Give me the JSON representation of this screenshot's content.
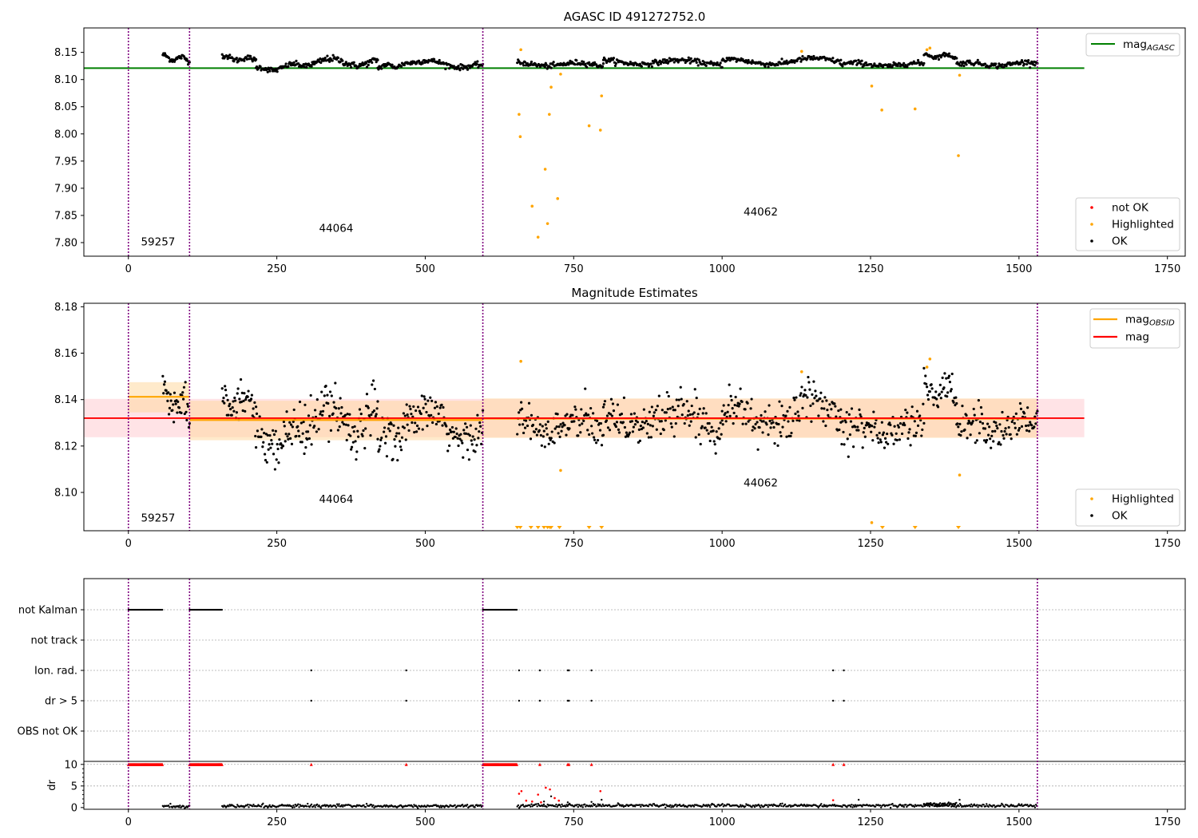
{
  "chart_data": [
    {
      "type": "scatter",
      "title": "AGASC ID 491272752.0",
      "xlim": [
        -75,
        1780
      ],
      "ylim": [
        7.775,
        8.195
      ],
      "xticks": [
        0,
        250,
        500,
        750,
        1000,
        1250,
        1500,
        1750
      ],
      "yticks": [
        7.8,
        7.85,
        7.9,
        7.95,
        8.0,
        8.05,
        8.1,
        8.15
      ],
      "grid": false,
      "obsid_boundaries": [
        0,
        103,
        597,
        1531
      ],
      "obsid_labels": [
        {
          "text": "59257",
          "x": 50,
          "y": 7.795
        },
        {
          "text": "44064",
          "x": 350,
          "y": 7.82
        },
        {
          "text": "44062",
          "x": 1065,
          "y": 7.85
        }
      ],
      "lines": [
        {
          "name": "mag",
          "subscript": "AGASC",
          "color": "#008000",
          "y": 8.121,
          "x0": -75,
          "x1": 1610
        }
      ],
      "legend_lines_position": "upper right",
      "legend_points_position": "lower right",
      "legend_points": [
        {
          "name": "not OK",
          "color": "#ff0000"
        },
        {
          "name": "Highlighted",
          "color": "#ffa500"
        },
        {
          "name": "OK",
          "color": "#000000"
        }
      ],
      "ok_segments": [
        {
          "x0": 58,
          "x1": 103,
          "y0": 8.142,
          "y1": 8.136,
          "amp": 0.004,
          "noise": 0.004,
          "n": 40
        },
        {
          "x0": 158,
          "x1": 215,
          "y0": 8.141,
          "y1": 8.136,
          "amp": 0.003,
          "noise": 0.004,
          "n": 50
        },
        {
          "x0": 215,
          "x1": 300,
          "y0": 8.118,
          "y1": 8.127,
          "amp": 0.004,
          "noise": 0.004,
          "n": 70
        },
        {
          "x0": 300,
          "x1": 420,
          "y0": 8.133,
          "y1": 8.131,
          "amp": 0.006,
          "noise": 0.005,
          "n": 100
        },
        {
          "x0": 420,
          "x1": 470,
          "y0": 8.123,
          "y1": 8.128,
          "amp": 0.003,
          "noise": 0.004,
          "n": 40
        },
        {
          "x0": 470,
          "x1": 597,
          "y0": 8.134,
          "y1": 8.123,
          "amp": 0.004,
          "noise": 0.004,
          "n": 100
        },
        {
          "x0": 655,
          "x1": 800,
          "y0": 8.128,
          "y1": 8.128,
          "amp": 0.003,
          "noise": 0.004,
          "n": 110
        },
        {
          "x0": 800,
          "x1": 1000,
          "y0": 8.133,
          "y1": 8.131,
          "amp": 0.004,
          "noise": 0.004,
          "n": 150
        },
        {
          "x0": 1000,
          "x1": 1200,
          "y0": 8.132,
          "y1": 8.135,
          "amp": 0.005,
          "noise": 0.004,
          "n": 150
        },
        {
          "x0": 1200,
          "x1": 1340,
          "y0": 8.128,
          "y1": 8.127,
          "amp": 0.003,
          "noise": 0.004,
          "n": 100
        },
        {
          "x0": 1340,
          "x1": 1395,
          "y0": 8.145,
          "y1": 8.142,
          "amp": 0.003,
          "noise": 0.003,
          "n": 45
        },
        {
          "x0": 1395,
          "x1": 1531,
          "y0": 8.128,
          "y1": 8.129,
          "amp": 0.003,
          "noise": 0.004,
          "n": 100
        }
      ],
      "highlighted_points": [
        {
          "x": 661,
          "y": 8.155
        },
        {
          "x": 658,
          "y": 8.036
        },
        {
          "x": 660,
          "y": 7.995
        },
        {
          "x": 680,
          "y": 7.867
        },
        {
          "x": 690,
          "y": 7.81
        },
        {
          "x": 702,
          "y": 7.935
        },
        {
          "x": 706,
          "y": 7.835
        },
        {
          "x": 709,
          "y": 8.036
        },
        {
          "x": 712,
          "y": 8.086
        },
        {
          "x": 723,
          "y": 7.881
        },
        {
          "x": 728,
          "y": 8.11
        },
        {
          "x": 776,
          "y": 8.015
        },
        {
          "x": 795,
          "y": 8.007
        },
        {
          "x": 797,
          "y": 8.07
        },
        {
          "x": 1134,
          "y": 8.152
        },
        {
          "x": 1252,
          "y": 8.088
        },
        {
          "x": 1269,
          "y": 8.044
        },
        {
          "x": 1325,
          "y": 8.046
        },
        {
          "x": 1345,
          "y": 8.155
        },
        {
          "x": 1350,
          "y": 8.158
        },
        {
          "x": 1398,
          "y": 7.96
        },
        {
          "x": 1400,
          "y": 8.108
        }
      ]
    },
    {
      "type": "scatter",
      "title": "Magnitude Estimates",
      "xlim": [
        -75,
        1780
      ],
      "ylim": [
        8.0835,
        8.1815
      ],
      "xticks": [
        0,
        250,
        500,
        750,
        1000,
        1250,
        1500,
        1750
      ],
      "yticks": [
        8.1,
        8.12,
        8.14,
        8.16,
        8.18
      ],
      "grid": false,
      "obsid_boundaries": [
        0,
        103,
        597,
        1531
      ],
      "obsid_labels": [
        {
          "text": "59257",
          "x": 50,
          "y": 8.0875
        },
        {
          "text": "44064",
          "x": 350,
          "y": 8.0955
        },
        {
          "text": "44062",
          "x": 1065,
          "y": 8.1025
        }
      ],
      "lines": [
        {
          "name": "mag",
          "subscript": "OBSID",
          "color": "#ffa500",
          "segments": [
            {
              "x0": 0,
              "x1": 103,
              "y": 8.1412,
              "band": [
                8.1345,
                8.1475
              ]
            },
            {
              "x0": 103,
              "x1": 597,
              "y": 8.1312,
              "band": [
                8.1225,
                8.1395
              ]
            },
            {
              "x0": 597,
              "x1": 1531,
              "y": 8.1318,
              "band": [
                8.1235,
                8.1405
              ]
            }
          ]
        },
        {
          "name": "mag",
          "subscript": "",
          "color": "#ff0000",
          "y": 8.132,
          "band": [
            8.1238,
            8.1403
          ],
          "x0": -75,
          "x1": 1610
        }
      ],
      "legend_lines_position": "upper right",
      "legend_points_position": "lower right",
      "legend_points": [
        {
          "name": "Highlighted",
          "color": "#ffa500"
        },
        {
          "name": "OK",
          "color": "#000000"
        }
      ],
      "highlighted_points": [
        {
          "x": 661,
          "y": 8.1565
        },
        {
          "x": 728,
          "y": 8.1095
        },
        {
          "x": 1134,
          "y": 8.152
        },
        {
          "x": 1252,
          "y": 8.087
        },
        {
          "x": 1345,
          "y": 8.154
        },
        {
          "x": 1350,
          "y": 8.1575
        },
        {
          "x": 1400,
          "y": 8.1075
        }
      ],
      "offscale_low_markers": [
        655,
        660,
        678,
        690,
        700,
        706,
        710,
        712,
        726,
        776,
        797,
        1270,
        1325,
        1398
      ]
    },
    {
      "type": "scatter",
      "title": "",
      "xlim": [
        -75,
        1780
      ],
      "xticks": [
        0,
        250,
        500,
        750,
        1000,
        1250,
        1500,
        1750
      ],
      "obsid_boundaries": [
        0,
        103,
        597,
        1531
      ],
      "flag_rows": [
        {
          "label": "not Kalman",
          "ranges": [
            [
              0,
              58
            ],
            [
              103,
              158
            ],
            [
              597,
              655
            ]
          ],
          "points": []
        },
        {
          "label": "not track",
          "ranges": [],
          "points": []
        },
        {
          "label": "Ion. rad.",
          "ranges": [],
          "points": [
            308,
            468,
            658,
            693,
            740,
            742,
            780,
            1187,
            1205
          ]
        },
        {
          "label": "dr > 5",
          "ranges": [],
          "points": [
            308,
            468,
            658,
            693,
            740,
            742,
            780,
            1187,
            1205
          ]
        },
        {
          "label": "OBS not OK",
          "ranges": [],
          "points": []
        }
      ],
      "flag_summary_value": 10,
      "flag_summary_ranges": [
        [
          0,
          58
        ],
        [
          103,
          158
        ],
        [
          597,
          655
        ]
      ],
      "flag_summary_points": [
        308,
        468,
        693,
        740,
        742,
        780,
        1187,
        1205
      ],
      "dr_panel": {
        "ylabel": "dr",
        "ylim": [
          -0.4,
          10.7
        ],
        "yticks": [
          0,
          5,
          10
        ],
        "ok_segments": [
          {
            "x0": 58,
            "x1": 103,
            "y": 0.25
          },
          {
            "x0": 158,
            "x1": 597,
            "y": 0.35
          },
          {
            "x0": 655,
            "x1": 1531,
            "y": 0.45
          },
          {
            "x0": 1340,
            "x1": 1395,
            "y": 0.85
          }
        ],
        "not_ok_points": [
          {
            "x": 658,
            "y": 3.2
          },
          {
            "x": 662,
            "y": 3.8
          },
          {
            "x": 670,
            "y": 1.6
          },
          {
            "x": 680,
            "y": 1.4
          },
          {
            "x": 690,
            "y": 3.0
          },
          {
            "x": 695,
            "y": 1.2
          },
          {
            "x": 703,
            "y": 4.6
          },
          {
            "x": 710,
            "y": 4.2
          },
          {
            "x": 718,
            "y": 2.2
          },
          {
            "x": 725,
            "y": 1.6
          },
          {
            "x": 795,
            "y": 3.8
          },
          {
            "x": 1187,
            "y": 1.7
          }
        ],
        "scattered_ok_points": [
          {
            "x": 700,
            "y": 1.4
          },
          {
            "x": 712,
            "y": 2.6
          },
          {
            "x": 740,
            "y": 1.2
          },
          {
            "x": 780,
            "y": 1.3
          },
          {
            "x": 797,
            "y": 1.8
          },
          {
            "x": 1230,
            "y": 1.8
          },
          {
            "x": 1400,
            "y": 1.8
          }
        ]
      }
    }
  ]
}
